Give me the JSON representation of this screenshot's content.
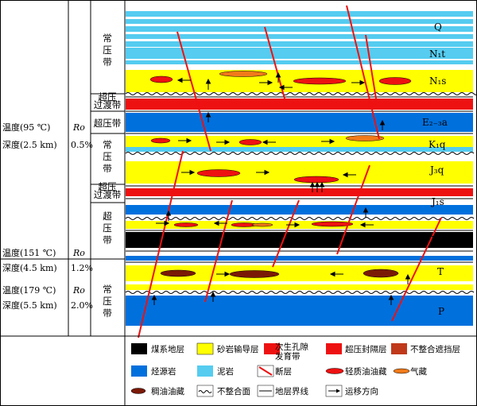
{
  "left_panel": {
    "temperature_95": "温度(95 ℃)",
    "ro_label_1": "Ro",
    "depth_2_5": "深度(2.5 km)",
    "ro_0_5": "0.5%",
    "temperature_151": "温度(151 ℃)",
    "ro_label_2": "Ro",
    "depth_4_5": "深度(4.5 km)",
    "ro_1_2": "1.2%",
    "temperature_179": "温度(179 ℃)",
    "ro_label_3": "Ro",
    "depth_5_5": "深度(5.5 km)",
    "ro_2_0": "2.0%"
  },
  "pressure_zones": {
    "normal_1": "常压带",
    "transition_1": "超压过渡带",
    "overpressure_1": "超压带",
    "normal_2": "常压带",
    "transition_2": "超压过渡带",
    "overpressure_2": "超压带",
    "normal_3": "常压带"
  },
  "strata": {
    "Q": "Q",
    "N1t": "N₁t",
    "N1s": "N₁s",
    "E23a": "E₂₋₃a",
    "K1q": "K₁q",
    "J3q": "J₃q",
    "J1s": "J₁s",
    "J1b": "J₁b",
    "T": "T",
    "P": "P"
  },
  "legend": {
    "coal": "煤系地层",
    "sandstone_carrier": "砂岩输导层",
    "secondary_pore": "次生孔隙发育带",
    "overpressure_seal": "超压封隔层",
    "unconformity_barrier": "不整合遮挡层",
    "source_rock": "烃源岩",
    "mudstone": "泥岩",
    "fault": "断层",
    "light_oil": "轻质油油藏",
    "gas": "气藏",
    "heavy_oil": "稠油油藏",
    "unconformity": "不整合面",
    "boundary": "地层界线",
    "migration": "运移方向"
  },
  "colors": {
    "yellow": "#ffff00",
    "blue": "#0070dd",
    "light_blue": "#55ccf0",
    "red": "#ee1111",
    "dark_red": "#c0391a",
    "coal": "#000000",
    "heavy_oil": "#7a1a06",
    "gas": "#f07a1a"
  }
}
